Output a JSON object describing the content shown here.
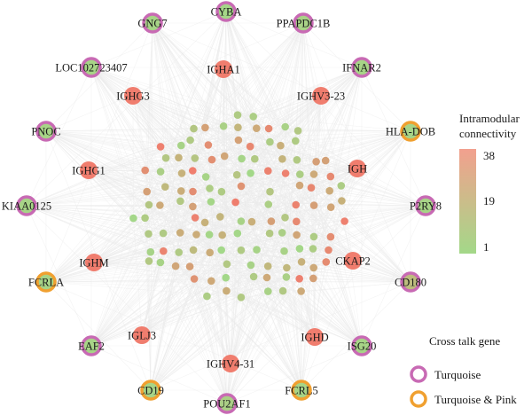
{
  "colors": {
    "turquoise_ring": "#c86ab4",
    "pink_ring": "#f0a030",
    "low": "#a3d889",
    "mid": "#c8b07a",
    "high": "#f07d6e",
    "edge": "#ebebeb"
  },
  "legend": {
    "connectivity_title_line1": "Intramodular",
    "connectivity_title_line2": "connectivity",
    "scale_max": "38",
    "scale_mid": "19",
    "scale_min": "1",
    "crosstalk_title": "Cross talk gene",
    "turquoise_label": "Turquoise",
    "pink_label": "Turquoise & Pink"
  },
  "outer_nodes": [
    {
      "label": "CYBA",
      "ring": "turquoise",
      "value": 2
    },
    {
      "label": "PPAPDC1B",
      "ring": "turquoise",
      "value": 4
    },
    {
      "label": "IFNAR2",
      "ring": "turquoise",
      "value": 3
    },
    {
      "label": "HLA-DOB",
      "ring": "pink",
      "value": 3
    },
    {
      "label": "P2RY8",
      "ring": "turquoise",
      "value": 3
    },
    {
      "label": "CD180",
      "ring": "turquoise",
      "value": 14
    },
    {
      "label": "ISG20",
      "ring": "turquoise",
      "value": 3
    },
    {
      "label": "FCRL5",
      "ring": "pink",
      "value": 3
    },
    {
      "label": "POU2AF1",
      "ring": "turquoise",
      "value": 5
    },
    {
      "label": "CD19",
      "ring": "pink",
      "value": 3
    },
    {
      "label": "EAF2",
      "ring": "turquoise",
      "value": 3
    },
    {
      "label": "FCRLA",
      "ring": "pink",
      "value": 3
    },
    {
      "label": "KIAA0125",
      "ring": "turquoise",
      "value": 3
    },
    {
      "label": "PNOC",
      "ring": "turquoise",
      "value": 3
    },
    {
      "label": "LOC102723407",
      "ring": "turquoise",
      "value": 3
    },
    {
      "label": "GNG7",
      "ring": "turquoise",
      "value": 3
    }
  ],
  "inner_nodes": [
    {
      "label": "IGHA1",
      "ring": "none",
      "value": 38
    },
    {
      "label": "IGHV3-23",
      "ring": "none",
      "value": 38
    },
    {
      "label": "IGH",
      "ring": "none",
      "value": 38
    },
    {
      "label": "CKAP2",
      "ring": "none",
      "value": 38
    },
    {
      "label": "IGHD",
      "ring": "none",
      "value": 38
    },
    {
      "label": "IGHV4-31",
      "ring": "none",
      "value": 38
    },
    {
      "label": "IGLJ3",
      "ring": "none",
      "value": 38
    },
    {
      "label": "IGHM",
      "ring": "none",
      "value": 38
    },
    {
      "label": "IGHG1",
      "ring": "none",
      "value": 38
    },
    {
      "label": "IGHG3",
      "ring": "none",
      "value": 38
    }
  ]
}
